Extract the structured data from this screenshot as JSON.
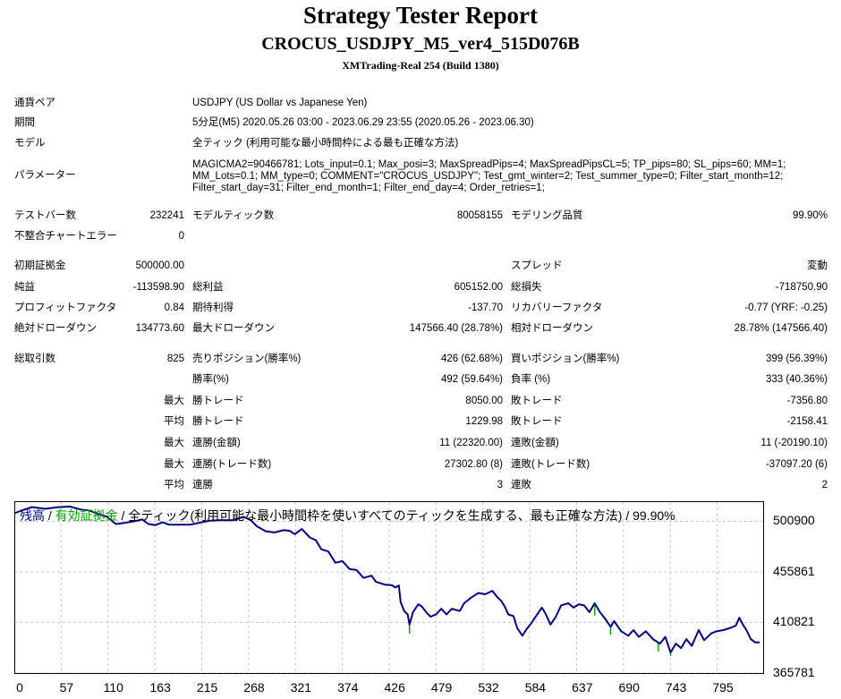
{
  "header": {
    "title": "Strategy Tester Report",
    "subtitle": "CROCUS_USDJPY_M5_ver4_515D076B",
    "server": "XMTrading-Real 254 (Build 1380)"
  },
  "info": {
    "symbol_label": "通貨ペア",
    "symbol_value": "USDJPY (US Dollar vs Japanese Yen)",
    "period_label": "期間",
    "period_value": "5分足(M5) 2020.05.26 03:00 - 2023.06.29 23:55 (2020.05.26 - 2023.06.30)",
    "model_label": "モデル",
    "model_value": "全ティック (利用可能な最小時間枠による最も正確な方法)",
    "params_label": "パラメーター",
    "params_value": "MAGICMA2=90466781; Lots_input=0.1; Max_posi=3; MaxSpreadPips=4; MaxSpreadPipsCL=5; TP_pips=80; SL_pips=60; MM=1; MM_Lots=0.1; MM_type=0; COMMENT=\"CROCUS_USDJPY\"; Test_gmt_winter=2; Test_summer_type=0; Filter_start_month=12; Filter_start_day=31; Filter_end_month=1; Filter_end_day=4; Order_retries=1;"
  },
  "stats": {
    "bars_label": "テストバー数",
    "bars_value": "232241",
    "ticks_label": "モデルティック数",
    "ticks_value": "80058155",
    "quality_label": "モデリング品質",
    "quality_value": "99.90%",
    "mismatch_label": "不整合チャートエラー",
    "mismatch_value": "0",
    "deposit_label": "初期証拠金",
    "deposit_value": "500000.00",
    "spread_label": "スプレッド",
    "spread_value": "変動",
    "net_label": "純益",
    "net_value": "-113598.90",
    "gross_profit_label": "総利益",
    "gross_profit_value": "605152.00",
    "gross_loss_label": "総損失",
    "gross_loss_value": "-718750.90",
    "pf_label": "プロフィットファクタ",
    "pf_value": "0.84",
    "expected_label": "期待利得",
    "expected_value": "-137.70",
    "recovery_label": "リカバリーファクタ",
    "recovery_value": "-0.77 (YRF: -0.25)",
    "abs_dd_label": "絶対ドローダウン",
    "abs_dd_value": "134773.60",
    "max_dd_label": "最大ドローダウン",
    "max_dd_value": "147566.40 (28.78%)",
    "rel_dd_label": "相対ドローダウン",
    "rel_dd_value": "28.78% (147566.40)",
    "total_label": "総取引数",
    "total_value": "825",
    "short_label": "売りポジション(勝率%)",
    "short_value": "426 (62.68%)",
    "long_label": "買いポジション(勝率%)",
    "long_value": "399 (56.39%)",
    "winrate_label": "勝率(%)",
    "winrate_value": "492 (59.64%)",
    "lossrate_label": "負率 (%)",
    "lossrate_value": "333 (40.36%)",
    "max_word": "最大",
    "avg_word": "平均",
    "max_win_label": "勝トレード",
    "max_win_value": "8050.00",
    "max_loss_label": "敗トレード",
    "max_loss_value": "-7356.80",
    "avg_win_label": "勝トレード",
    "avg_win_value": "1229.98",
    "avg_loss_label": "敗トレード",
    "avg_loss_value": "-2158.41",
    "cons_win_amt_label": "連勝(金額)",
    "cons_win_amt_value": "11 (22320.00)",
    "cons_loss_amt_label": "連敗(金額)",
    "cons_loss_amt_value": "11 (-20190.10)",
    "cons_win_cnt_label": "連勝(トレード数)",
    "cons_win_cnt_value": "27302.80 (8)",
    "cons_loss_cnt_label": "連敗(トレード数)",
    "cons_loss_cnt_value": "-37097.20 (6)",
    "avg_cons_win_label": "連勝",
    "avg_cons_win_value": "3",
    "avg_cons_loss_label": "連敗",
    "avg_cons_loss_value": "2"
  },
  "chart_data": {
    "type": "line",
    "legend_balance": "残高",
    "legend_sep1": " / ",
    "legend_equity": "有効証拠金",
    "legend_rest": " / 全ティック(利用可能な最小時間枠を使いすべてのティックを生成する、最も正確な方法) / 99.90%",
    "balance_color": "#000080",
    "equity_color": "#00a000",
    "y_ticks": [
      "500900",
      "455861",
      "410821",
      "365781"
    ],
    "x_ticks": [
      "0",
      "57",
      "110",
      "163",
      "215",
      "268",
      "321",
      "374",
      "426",
      "479",
      "532",
      "584",
      "637",
      "690",
      "743",
      "795"
    ],
    "ylim": [
      365781,
      518000
    ],
    "xlim": [
      0,
      850
    ],
    "balance": [
      [
        0,
        508000
      ],
      [
        10,
        511000
      ],
      [
        20,
        513500
      ],
      [
        35,
        512000
      ],
      [
        50,
        513500
      ],
      [
        63,
        514000
      ],
      [
        75,
        511500
      ],
      [
        85,
        510500
      ],
      [
        95,
        507500
      ],
      [
        105,
        505000
      ],
      [
        115,
        498500
      ],
      [
        125,
        499500
      ],
      [
        135,
        500800
      ],
      [
        145,
        502500
      ],
      [
        152,
        498500
      ],
      [
        160,
        497500
      ],
      [
        168,
        500000
      ],
      [
        175,
        498000
      ],
      [
        185,
        497800
      ],
      [
        200,
        498000
      ],
      [
        212,
        500000
      ],
      [
        222,
        501500
      ],
      [
        235,
        502000
      ],
      [
        248,
        501800
      ],
      [
        260,
        504800
      ],
      [
        268,
        502000
      ],
      [
        275,
        496500
      ],
      [
        285,
        492000
      ],
      [
        295,
        491000
      ],
      [
        305,
        493000
      ],
      [
        312,
        492500
      ],
      [
        318,
        489500
      ],
      [
        326,
        494000
      ],
      [
        335,
        486500
      ],
      [
        342,
        484000
      ],
      [
        348,
        476000
      ],
      [
        356,
        474000
      ],
      [
        364,
        464000
      ],
      [
        372,
        465500
      ],
      [
        380,
        458500
      ],
      [
        388,
        457500
      ],
      [
        396,
        450500
      ],
      [
        405,
        452500
      ],
      [
        410,
        447000
      ],
      [
        420,
        444500
      ],
      [
        428,
        444000
      ],
      [
        432,
        442000
      ],
      [
        436,
        443800
      ],
      [
        438,
        429000
      ],
      [
        442,
        421000
      ],
      [
        446,
        418000
      ],
      [
        448,
        409000
      ],
      [
        452,
        420000
      ],
      [
        458,
        427000
      ],
      [
        462,
        425000
      ],
      [
        468,
        419000
      ],
      [
        472,
        416000
      ],
      [
        478,
        418000
      ],
      [
        484,
        423000
      ],
      [
        490,
        418000
      ],
      [
        496,
        423000
      ],
      [
        505,
        421000
      ],
      [
        510,
        428000
      ],
      [
        518,
        433000
      ],
      [
        526,
        437000
      ],
      [
        534,
        436000
      ],
      [
        542,
        439000
      ],
      [
        548,
        433000
      ],
      [
        552,
        430000
      ],
      [
        556,
        425000
      ],
      [
        560,
        418000
      ],
      [
        566,
        416500
      ],
      [
        570,
        406000
      ],
      [
        576,
        399000
      ],
      [
        580,
        404000
      ],
      [
        586,
        410000
      ],
      [
        592,
        417000
      ],
      [
        598,
        424000
      ],
      [
        602,
        419000
      ],
      [
        608,
        409000
      ],
      [
        614,
        416000
      ],
      [
        620,
        426000
      ],
      [
        628,
        428000
      ],
      [
        634,
        424000
      ],
      [
        640,
        427000
      ],
      [
        646,
        426000
      ],
      [
        652,
        420000
      ],
      [
        658,
        428000
      ],
      [
        664,
        420000
      ],
      [
        670,
        414000
      ],
      [
        676,
        407000
      ],
      [
        680,
        412000
      ],
      [
        688,
        403000
      ],
      [
        696,
        399000
      ],
      [
        702,
        404000
      ],
      [
        708,
        398000
      ],
      [
        716,
        403000
      ],
      [
        724,
        396000
      ],
      [
        732,
        392000
      ],
      [
        738,
        398000
      ],
      [
        744,
        384000
      ],
      [
        750,
        392000
      ],
      [
        756,
        388000
      ],
      [
        762,
        396000
      ],
      [
        768,
        390000
      ],
      [
        776,
        404000
      ],
      [
        782,
        395000
      ],
      [
        790,
        401000
      ],
      [
        796,
        403000
      ],
      [
        804,
        404000
      ],
      [
        812,
        406000
      ],
      [
        818,
        408000
      ],
      [
        822,
        415000
      ],
      [
        826,
        409000
      ],
      [
        830,
        404000
      ],
      [
        835,
        396000
      ],
      [
        840,
        393000
      ],
      [
        845,
        393000
      ]
    ],
    "equity_dips": [
      [
        448,
        401000
      ],
      [
        658,
        417000
      ],
      [
        676,
        400000
      ],
      [
        730,
        385000
      ],
      [
        744,
        381000
      ]
    ]
  }
}
